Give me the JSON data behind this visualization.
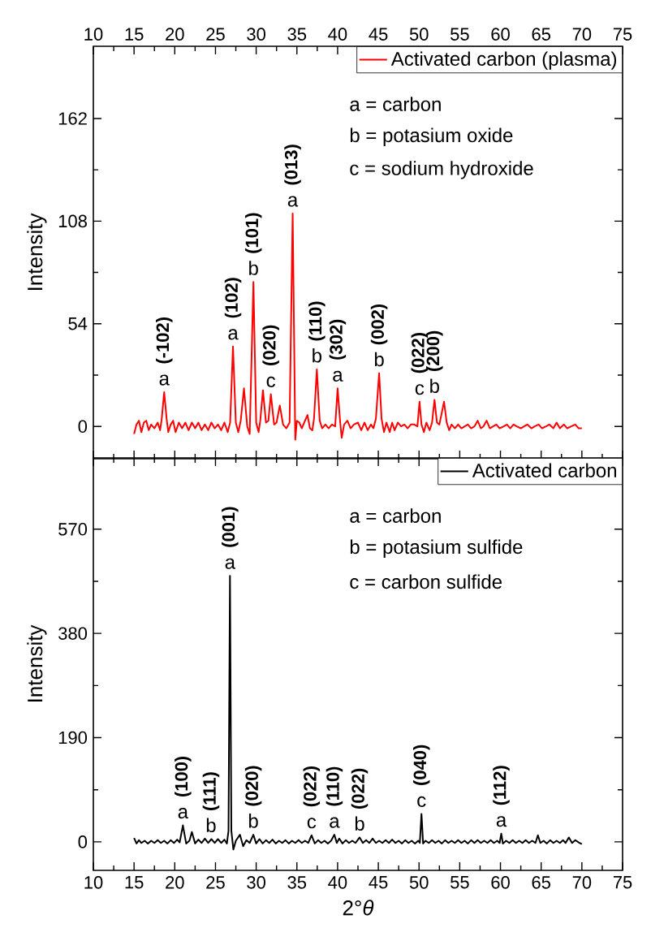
{
  "chart_data": [
    {
      "type": "line",
      "ylabel": "Intensity",
      "legend": "top right",
      "xlim": [
        10,
        75
      ],
      "xticks": [
        10,
        15,
        20,
        25,
        30,
        35,
        40,
        45,
        50,
        55,
        60,
        65,
        70,
        75
      ],
      "ylim": [
        -17,
        200
      ],
      "yticks": [
        0,
        54,
        108,
        162
      ],
      "series": [
        {
          "name": "Activated carbon (plasma)",
          "color": "#ff0000",
          "x": [
            15.0,
            15.3,
            15.6,
            15.9,
            16.2,
            16.5,
            16.8,
            17.1,
            17.5,
            17.9,
            18.2,
            18.4,
            18.7,
            19.0,
            19.2,
            19.5,
            19.8,
            20.1,
            20.5,
            20.9,
            21.3,
            21.7,
            22.1,
            22.5,
            22.9,
            23.3,
            23.7,
            24.1,
            24.5,
            24.9,
            25.3,
            25.7,
            26.1,
            26.5,
            26.8,
            27.15,
            27.5,
            27.8,
            28.1,
            28.5,
            28.9,
            29.2,
            29.66,
            30.0,
            30.3,
            30.5,
            30.83,
            31.2,
            31.5,
            31.8,
            32.2,
            32.5,
            32.9,
            33.3,
            33.7,
            34.1,
            34.48,
            34.8,
            35.0,
            35.3,
            35.6,
            35.9,
            36.3,
            36.6,
            36.9,
            37.1,
            37.45,
            37.8,
            38.1,
            38.5,
            38.9,
            39.3,
            39.7,
            40.0,
            40.3,
            40.5,
            40.8,
            41.2,
            41.6,
            42.0,
            42.5,
            42.9,
            43.3,
            43.7,
            44.1,
            44.4,
            44.7,
            45.1,
            45.4,
            45.7,
            46.0,
            46.4,
            46.7,
            47.0,
            47.4,
            47.8,
            48.2,
            48.6,
            49.0,
            49.4,
            49.8,
            50.06,
            50.3,
            50.6,
            50.9,
            51.3,
            51.6,
            51.9,
            52.2,
            52.5,
            53.07,
            53.4,
            53.7,
            54.0,
            54.4,
            54.8,
            55.2,
            55.6,
            56.0,
            56.4,
            56.8,
            57.2,
            57.6,
            57.9,
            58.3,
            58.7,
            59.1,
            59.5,
            59.9,
            60.4,
            60.8,
            61.2,
            61.6,
            62.0,
            62.5,
            62.9,
            63.3,
            63.8,
            64.2,
            64.7,
            65.1,
            65.6,
            66.0,
            66.5,
            66.9,
            67.3,
            67.8,
            68.2,
            68.7,
            69.2,
            69.6,
            70.0
          ],
          "values": [
            -4,
            1,
            3,
            -3,
            2,
            3,
            -2,
            1,
            -1,
            2,
            -2,
            4,
            18,
            4,
            -3,
            1,
            3,
            -3,
            2,
            -1,
            2,
            -2,
            2,
            -1,
            2,
            -2,
            1,
            -2,
            2,
            -1,
            1,
            -2,
            2,
            -3,
            2,
            42,
            2,
            -3,
            3,
            20,
            0,
            -4,
            76,
            2,
            -3,
            3,
            19,
            2,
            3,
            17,
            1,
            2,
            11,
            1,
            -1,
            2,
            112,
            -7,
            3,
            2,
            -1,
            2,
            6,
            -1,
            -2,
            4,
            30,
            3,
            -1,
            1,
            -1,
            1,
            0,
            20,
            3,
            -6,
            1,
            3,
            -1,
            1,
            2,
            -2,
            2,
            -2,
            1,
            -1,
            4,
            28,
            4,
            -3,
            2,
            -3,
            2,
            -2,
            2,
            0,
            1,
            -1,
            1,
            1,
            0,
            13,
            1,
            -3,
            2,
            -2,
            2,
            14,
            2,
            1,
            13,
            2,
            -2,
            1,
            -1,
            1,
            -1,
            0,
            1,
            -1,
            0,
            3,
            -1,
            0,
            3,
            -1,
            0,
            1,
            -1,
            0,
            1,
            -1,
            1,
            0,
            -1,
            0,
            1,
            -1,
            0,
            1,
            -1,
            0,
            1,
            -1,
            2,
            -1,
            1,
            -1,
            0,
            1,
            -1,
            -1
          ]
        }
      ],
      "annotations": [
        "a = carbon",
        "b = potasium oxide",
        "c = sodium hydroxide",
        {
          "text": "a",
          "x": 18.7,
          "y": 18
        },
        {
          "text": "(-102)",
          "x": 18.7,
          "y": 18
        },
        {
          "text": "a",
          "x": 27.15,
          "y": 42
        },
        {
          "text": "(102)",
          "x": 27.15,
          "y": 42
        },
        {
          "text": "b",
          "x": 29.66,
          "y": 76
        },
        {
          "text": "(101)",
          "x": 29.66,
          "y": 76
        },
        {
          "text": "c",
          "x": 31.8,
          "y": 17
        },
        {
          "text": "(020)",
          "x": 31.8,
          "y": 17
        },
        {
          "text": "a",
          "x": 34.48,
          "y": 112
        },
        {
          "text": "(013)",
          "x": 34.48,
          "y": 112
        },
        {
          "text": "b",
          "x": 37.45,
          "y": 30
        },
        {
          "text": "(110)",
          "x": 37.45,
          "y": 30
        },
        {
          "text": "a",
          "x": 40.0,
          "y": 20
        },
        {
          "text": "(302)",
          "x": 40.0,
          "y": 20
        },
        {
          "text": "b",
          "x": 45.1,
          "y": 28
        },
        {
          "text": "(002)",
          "x": 45.1,
          "y": 28
        },
        {
          "text": "c",
          "x": 50.06,
          "y": 13
        },
        {
          "text": "(022)",
          "x": 50.06,
          "y": 13
        },
        {
          "text": "b",
          "x": 51.9,
          "y": 14
        },
        {
          "text": "(200)",
          "x": 51.9,
          "y": 14
        }
      ]
    },
    {
      "type": "line",
      "xlabel": "2°*θ*",
      "ylabel": "Intensity",
      "legend": "top right",
      "xlim": [
        10,
        75
      ],
      "xticks": [
        10,
        15,
        20,
        25,
        30,
        35,
        40,
        45,
        50,
        55,
        60,
        65,
        70,
        75
      ],
      "ylim": [
        -52,
        700
      ],
      "yticks": [
        0,
        190,
        380,
        570
      ],
      "series": [
        {
          "name": "Activated carbon",
          "color": "#000000",
          "x": [
            15.0,
            15.3,
            15.6,
            15.9,
            16.3,
            16.7,
            17.1,
            17.5,
            17.9,
            18.3,
            18.7,
            19.1,
            19.5,
            19.9,
            20.3,
            20.6,
            21.0,
            21.4,
            21.8,
            22.1,
            22.5,
            22.9,
            23.3,
            23.7,
            24.1,
            24.5,
            24.9,
            25.3,
            25.7,
            26.1,
            26.4,
            26.6,
            26.78,
            26.95,
            27.2,
            27.5,
            28.0,
            28.4,
            28.8,
            29.2,
            29.65,
            30.0,
            30.4,
            30.8,
            31.2,
            31.6,
            32.0,
            32.4,
            32.8,
            33.2,
            33.6,
            34.0,
            34.4,
            34.8,
            35.2,
            35.6,
            36.0,
            36.4,
            36.8,
            37.2,
            37.6,
            38.0,
            38.4,
            38.8,
            39.2,
            39.6,
            39.9,
            40.2,
            40.6,
            41.0,
            41.4,
            41.8,
            42.2,
            42.7,
            43.1,
            43.5,
            43.9,
            44.3,
            44.7,
            45.1,
            45.5,
            45.9,
            46.3,
            46.7,
            47.1,
            47.5,
            47.9,
            48.3,
            48.7,
            49.1,
            49.5,
            49.9,
            50.1,
            50.3,
            50.5,
            50.8,
            51.2,
            51.6,
            52.0,
            52.4,
            52.8,
            53.2,
            53.6,
            54.0,
            54.4,
            54.8,
            55.2,
            55.6,
            56.0,
            56.4,
            56.8,
            57.2,
            57.6,
            58.0,
            58.4,
            58.8,
            59.2,
            59.6,
            59.9,
            60.1,
            60.3,
            60.7,
            61.1,
            61.5,
            61.9,
            62.3,
            62.7,
            63.1,
            63.5,
            63.9,
            64.3,
            64.6,
            64.9,
            65.3,
            65.7,
            66.1,
            66.5,
            66.9,
            67.3,
            67.7,
            68.0,
            68.4,
            68.8,
            69.2,
            69.6,
            70.0
          ],
          "values": [
            7,
            -3,
            3,
            -2,
            2,
            -3,
            2,
            -2,
            3,
            -2,
            2,
            -3,
            3,
            -2,
            4,
            -1,
            30,
            -3,
            2,
            18,
            -3,
            4,
            -2,
            6,
            -2,
            5,
            -2,
            5,
            -2,
            4,
            -3,
            20,
            485,
            20,
            -14,
            2,
            13,
            -8,
            3,
            -2,
            13,
            -3,
            5,
            -3,
            3,
            -2,
            4,
            -3,
            2,
            -2,
            3,
            -3,
            2,
            -2,
            3,
            -2,
            2,
            -2,
            12,
            -3,
            3,
            -2,
            2,
            -3,
            2,
            13,
            -2,
            6,
            -3,
            3,
            -2,
            2,
            -2,
            8,
            -2,
            3,
            -2,
            6,
            -2,
            2,
            -2,
            3,
            -2,
            4,
            -2,
            2,
            -3,
            3,
            -2,
            2,
            -3,
            2,
            -2,
            51,
            -3,
            2,
            -2,
            3,
            -2,
            2,
            -3,
            3,
            -2,
            2,
            -2,
            3,
            -2,
            2,
            -3,
            3,
            -2,
            3,
            -2,
            2,
            -2,
            3,
            -2,
            2,
            -2,
            15,
            -3,
            2,
            -2,
            3,
            -2,
            2,
            -2,
            3,
            -2,
            2,
            -2,
            12,
            -2,
            2,
            -3,
            3,
            -2,
            2,
            -2,
            3,
            -2,
            8,
            -2,
            3,
            -1,
            -4
          ]
        }
      ],
      "annotations": [
        "a = carbon",
        "b = potasium sulfide",
        "c = carbon sulfide",
        {
          "text": "a",
          "x": 21.0,
          "y": 30
        },
        {
          "text": "(100)",
          "x": 21.0,
          "y": 30
        },
        {
          "text": "b",
          "x": 24.45,
          "y": 5
        },
        {
          "text": "(111)",
          "x": 24.45,
          "y": 5
        },
        {
          "text": "a",
          "x": 26.78,
          "y": 485
        },
        {
          "text": "(001)",
          "x": 26.78,
          "y": 485
        },
        {
          "text": "b",
          "x": 29.65,
          "y": 13
        },
        {
          "text": "(020)",
          "x": 29.65,
          "y": 13
        },
        {
          "text": "c",
          "x": 36.8,
          "y": 12
        },
        {
          "text": "(022)",
          "x": 36.8,
          "y": 12
        },
        {
          "text": "a",
          "x": 39.6,
          "y": 13
        },
        {
          "text": "(110)",
          "x": 39.6,
          "y": 13
        },
        {
          "text": "b",
          "x": 42.7,
          "y": 8
        },
        {
          "text": "(022)",
          "x": 42.7,
          "y": 8
        },
        {
          "text": "c",
          "x": 50.3,
          "y": 51
        },
        {
          "text": "(040)",
          "x": 50.3,
          "y": 51
        },
        {
          "text": "a",
          "x": 60.1,
          "y": 15
        },
        {
          "text": "(112)",
          "x": 60.1,
          "y": 15
        }
      ]
    }
  ]
}
